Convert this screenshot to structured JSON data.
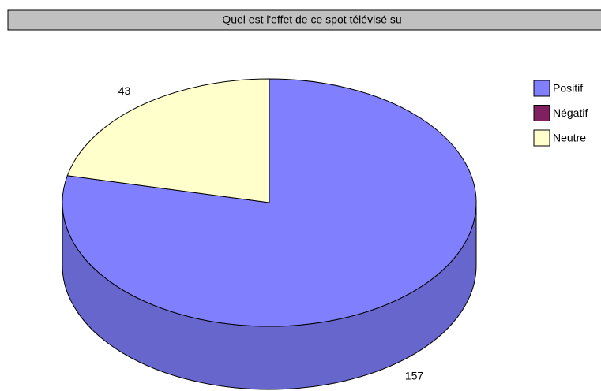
{
  "chart_data": {
    "type": "pie3d",
    "title": "Quel est l'effet de ce spot télévisé su",
    "categories": [
      "Positif",
      "Négatif",
      "Neutre"
    ],
    "values": [
      157,
      0,
      43
    ],
    "colors": [
      "#8080ff",
      "#802060",
      "#ffffcc"
    ],
    "legend": "right"
  }
}
